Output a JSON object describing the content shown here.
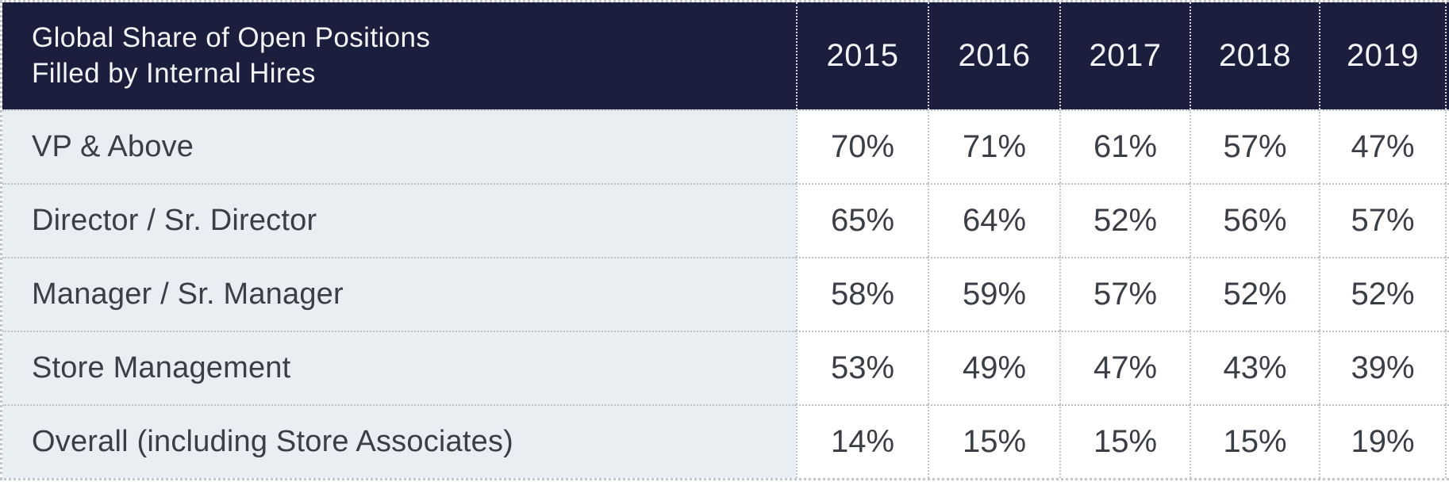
{
  "chart_data": {
    "type": "table",
    "title": "Global Share of Open Positions Filled by Internal Hires",
    "title_lines": [
      "Global Share of Open Positions",
      "Filled by Internal Hires"
    ],
    "columns": [
      "2015",
      "2016",
      "2017",
      "2018",
      "2019"
    ],
    "rows": [
      {
        "label": "VP & Above",
        "values": [
          "70%",
          "71%",
          "61%",
          "57%",
          "47%"
        ]
      },
      {
        "label": "Director / Sr. Director",
        "values": [
          "65%",
          "64%",
          "52%",
          "56%",
          "57%"
        ]
      },
      {
        "label": "Manager / Sr. Manager",
        "values": [
          "58%",
          "59%",
          "57%",
          "52%",
          "52%"
        ]
      },
      {
        "label": "Store Management",
        "values": [
          "53%",
          "49%",
          "47%",
          "43%",
          "39%"
        ]
      },
      {
        "label": "Overall (including Store Associates)",
        "values": [
          "14%",
          "15%",
          "15%",
          "15%",
          "19%"
        ]
      }
    ],
    "values_numeric": [
      [
        70,
        71,
        61,
        57,
        47
      ],
      [
        65,
        64,
        52,
        56,
        57
      ],
      [
        58,
        59,
        57,
        52,
        52
      ],
      [
        53,
        49,
        47,
        43,
        39
      ],
      [
        14,
        15,
        15,
        15,
        19
      ]
    ],
    "unit": "%"
  },
  "colors": {
    "header_bg": "#1b1e3c",
    "header_text": "#f3f4f6",
    "label_bg": "#e8eef2",
    "cell_bg": "#ffffff",
    "body_text": "#3a3e45",
    "grid_dotted": "#c0c5c9"
  }
}
